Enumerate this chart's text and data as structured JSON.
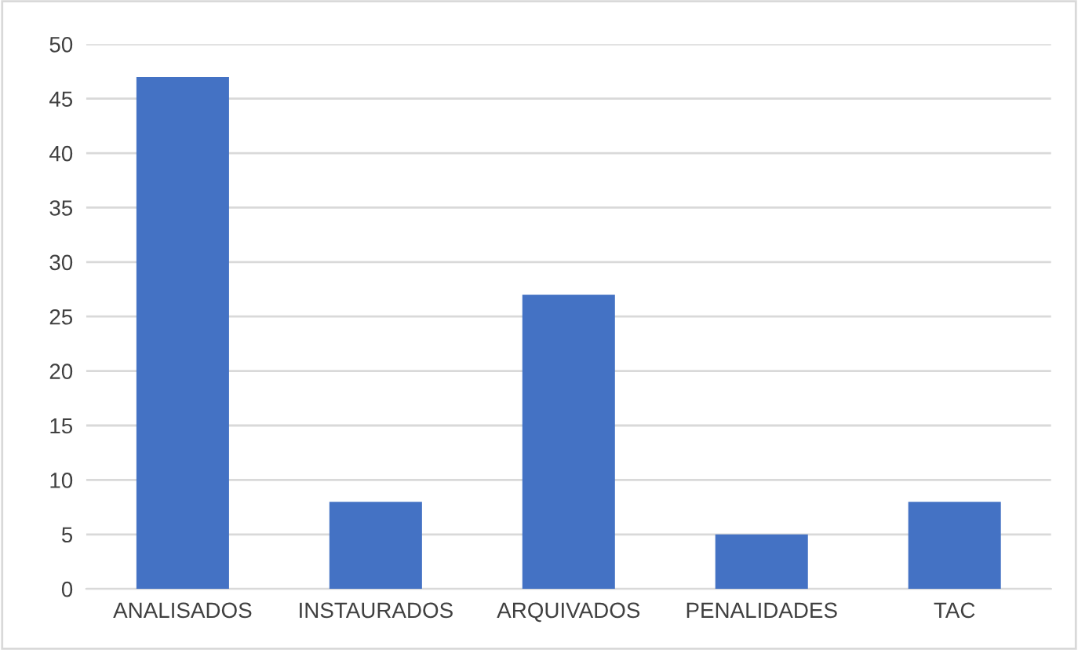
{
  "chart_data": {
    "type": "bar",
    "categories": [
      "ANALISADOS",
      "INSTAURADOS",
      "ARQUIVADOS",
      "PENALIDADES",
      "TAC"
    ],
    "values": [
      47,
      8,
      27,
      5,
      8
    ],
    "color": "#4472c4",
    "ylim": [
      0,
      50
    ],
    "yticks": [
      0,
      5,
      10,
      15,
      20,
      25,
      30,
      35,
      40,
      45,
      50
    ],
    "grid": "y"
  }
}
